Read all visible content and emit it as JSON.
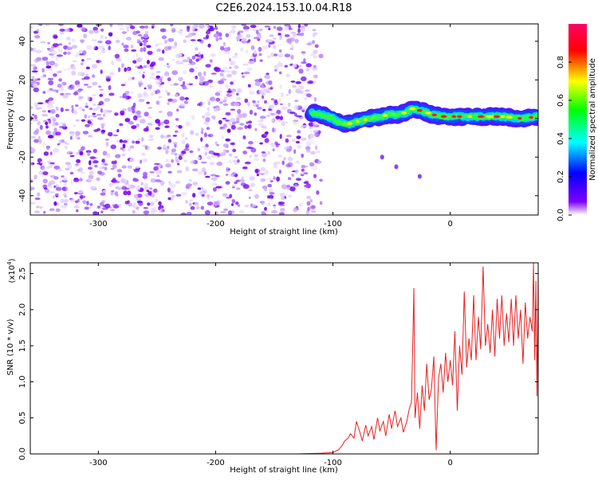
{
  "chart_data": [
    {
      "type": "heatmap",
      "title": "C2E6.2024.153.10.04.R18",
      "xlabel": "Height of straight line (km)",
      "ylabel": "Frequency (Hz)",
      "xlim": [
        -358,
        75
      ],
      "ylim": [
        -50,
        49
      ],
      "xticks": [
        "-300",
        "-200",
        "-100",
        "0"
      ],
      "xtick_values": [
        -300,
        -200,
        -100,
        0
      ],
      "yticks": [
        "-40",
        "-20",
        "0",
        "20",
        "40"
      ],
      "ytick_values": [
        -40,
        -20,
        0,
        20,
        40
      ],
      "noise_region_x": [
        -358,
        -110
      ],
      "signal_band": [
        {
          "x": -118,
          "f": 3
        },
        {
          "x": -110,
          "f": 2
        },
        {
          "x": -100,
          "f": 0
        },
        {
          "x": -95,
          "f": -2
        },
        {
          "x": -88,
          "f": -3
        },
        {
          "x": -82,
          "f": -2
        },
        {
          "x": -75,
          "f": -1
        },
        {
          "x": -68,
          "f": 0
        },
        {
          "x": -60,
          "f": 1
        },
        {
          "x": -52,
          "f": 2
        },
        {
          "x": -45,
          "f": 2
        },
        {
          "x": -38,
          "f": 3
        },
        {
          "x": -32,
          "f": 5
        },
        {
          "x": -25,
          "f": 4
        },
        {
          "x": -15,
          "f": 2
        },
        {
          "x": -5,
          "f": 1
        },
        {
          "x": 5,
          "f": 1
        },
        {
          "x": 15,
          "f": 1
        },
        {
          "x": 30,
          "f": 1
        },
        {
          "x": 45,
          "f": 1
        },
        {
          "x": 60,
          "f": 0
        },
        {
          "x": 75,
          "f": 1
        }
      ],
      "isolated_points": [
        {
          "x": -58,
          "f": -20
        },
        {
          "x": -46,
          "f": -25
        },
        {
          "x": -26,
          "f": -30
        }
      ],
      "colorbar": {
        "label": "Normalized spectral amplitude",
        "ticks": [
          "0.0",
          "0.2",
          "0.4",
          "0.6",
          "0.8"
        ],
        "tick_values": [
          0.0,
          0.2,
          0.4,
          0.6,
          0.8
        ],
        "range": [
          0,
          1
        ],
        "colors": [
          "#ffffff",
          "#7d00ff",
          "#0000ff",
          "#00ffff",
          "#00ff00",
          "#ffff00",
          "#ff0000",
          "#ff0066"
        ]
      }
    },
    {
      "type": "line",
      "xlabel": "Height of straight line (km)",
      "ylabel": "SNR (10 * v/v)",
      "yscale_label": "(x10",
      "yscale_exp": "4",
      "yscale_close": ")",
      "xlim": [
        -358,
        75
      ],
      "ylim": [
        0,
        2.65
      ],
      "xticks": [
        "-300",
        "-200",
        "-100",
        "0"
      ],
      "xtick_values": [
        -300,
        -200,
        -100,
        0
      ],
      "yticks": [
        "0.0",
        "0.5",
        "1.0",
        "1.5",
        "2.0",
        "2.5"
      ],
      "ytick_values": [
        0.0,
        0.5,
        1.0,
        1.5,
        2.0,
        2.5
      ],
      "line_color": "#e82020",
      "series": [
        {
          "name": "SNR",
          "points": [
            [
              -358,
              0.0
            ],
            [
              -300,
              0.0
            ],
            [
              -200,
              0.0
            ],
            [
              -130,
              0.0
            ],
            [
              -110,
              0.01
            ],
            [
              -100,
              0.02
            ],
            [
              -95,
              0.06
            ],
            [
              -92,
              0.12
            ],
            [
              -90,
              0.18
            ],
            [
              -87,
              0.22
            ],
            [
              -85,
              0.28
            ],
            [
              -82,
              0.22
            ],
            [
              -80,
              0.45
            ],
            [
              -77,
              0.3
            ],
            [
              -75,
              0.18
            ],
            [
              -72,
              0.4
            ],
            [
              -70,
              0.25
            ],
            [
              -67,
              0.38
            ],
            [
              -65,
              0.2
            ],
            [
              -62,
              0.5
            ],
            [
              -60,
              0.32
            ],
            [
              -57,
              0.45
            ],
            [
              -55,
              0.25
            ],
            [
              -52,
              0.55
            ],
            [
              -50,
              0.35
            ],
            [
              -47,
              0.6
            ],
            [
              -45,
              0.38
            ],
            [
              -42,
              0.5
            ],
            [
              -40,
              0.3
            ],
            [
              -37,
              0.45
            ],
            [
              -35,
              0.62
            ],
            [
              -33,
              0.72
            ],
            [
              -31,
              2.3
            ],
            [
              -30,
              0.5
            ],
            [
              -28,
              0.85
            ],
            [
              -26,
              0.35
            ],
            [
              -24,
              0.95
            ],
            [
              -22,
              0.6
            ],
            [
              -20,
              1.25
            ],
            [
              -18,
              0.75
            ],
            [
              -16,
              0.9
            ],
            [
              -14,
              1.35
            ],
            [
              -12,
              0.05
            ],
            [
              -10,
              1.05
            ],
            [
              -8,
              1.25
            ],
            [
              -6,
              0.85
            ],
            [
              -4,
              1.4
            ],
            [
              -2,
              1.0
            ],
            [
              0,
              1.3
            ],
            [
              2,
              0.95
            ],
            [
              4,
              1.7
            ],
            [
              6,
              0.6
            ],
            [
              8,
              1.5
            ],
            [
              10,
              1.1
            ],
            [
              12,
              2.25
            ],
            [
              14,
              1.2
            ],
            [
              16,
              1.6
            ],
            [
              18,
              1.3
            ],
            [
              20,
              2.2
            ],
            [
              22,
              1.3
            ],
            [
              24,
              1.9
            ],
            [
              26,
              1.45
            ],
            [
              28,
              2.6
            ],
            [
              30,
              1.5
            ],
            [
              32,
              1.8
            ],
            [
              34,
              1.4
            ],
            [
              36,
              2.0
            ],
            [
              38,
              1.35
            ],
            [
              40,
              2.15
            ],
            [
              42,
              1.6
            ],
            [
              44,
              2.2
            ],
            [
              46,
              1.5
            ],
            [
              48,
              1.95
            ],
            [
              50,
              1.55
            ],
            [
              52,
              2.15
            ],
            [
              54,
              1.5
            ],
            [
              56,
              2.2
            ],
            [
              58,
              1.6
            ],
            [
              60,
              2.0
            ],
            [
              62,
              1.25
            ],
            [
              64,
              2.1
            ],
            [
              66,
              1.6
            ],
            [
              68,
              1.9
            ],
            [
              70,
              1.7
            ],
            [
              71,
              2.65
            ],
            [
              72,
              1.3
            ],
            [
              73,
              2.4
            ],
            [
              74,
              0.8
            ],
            [
              75,
              2.5
            ]
          ]
        }
      ]
    }
  ]
}
